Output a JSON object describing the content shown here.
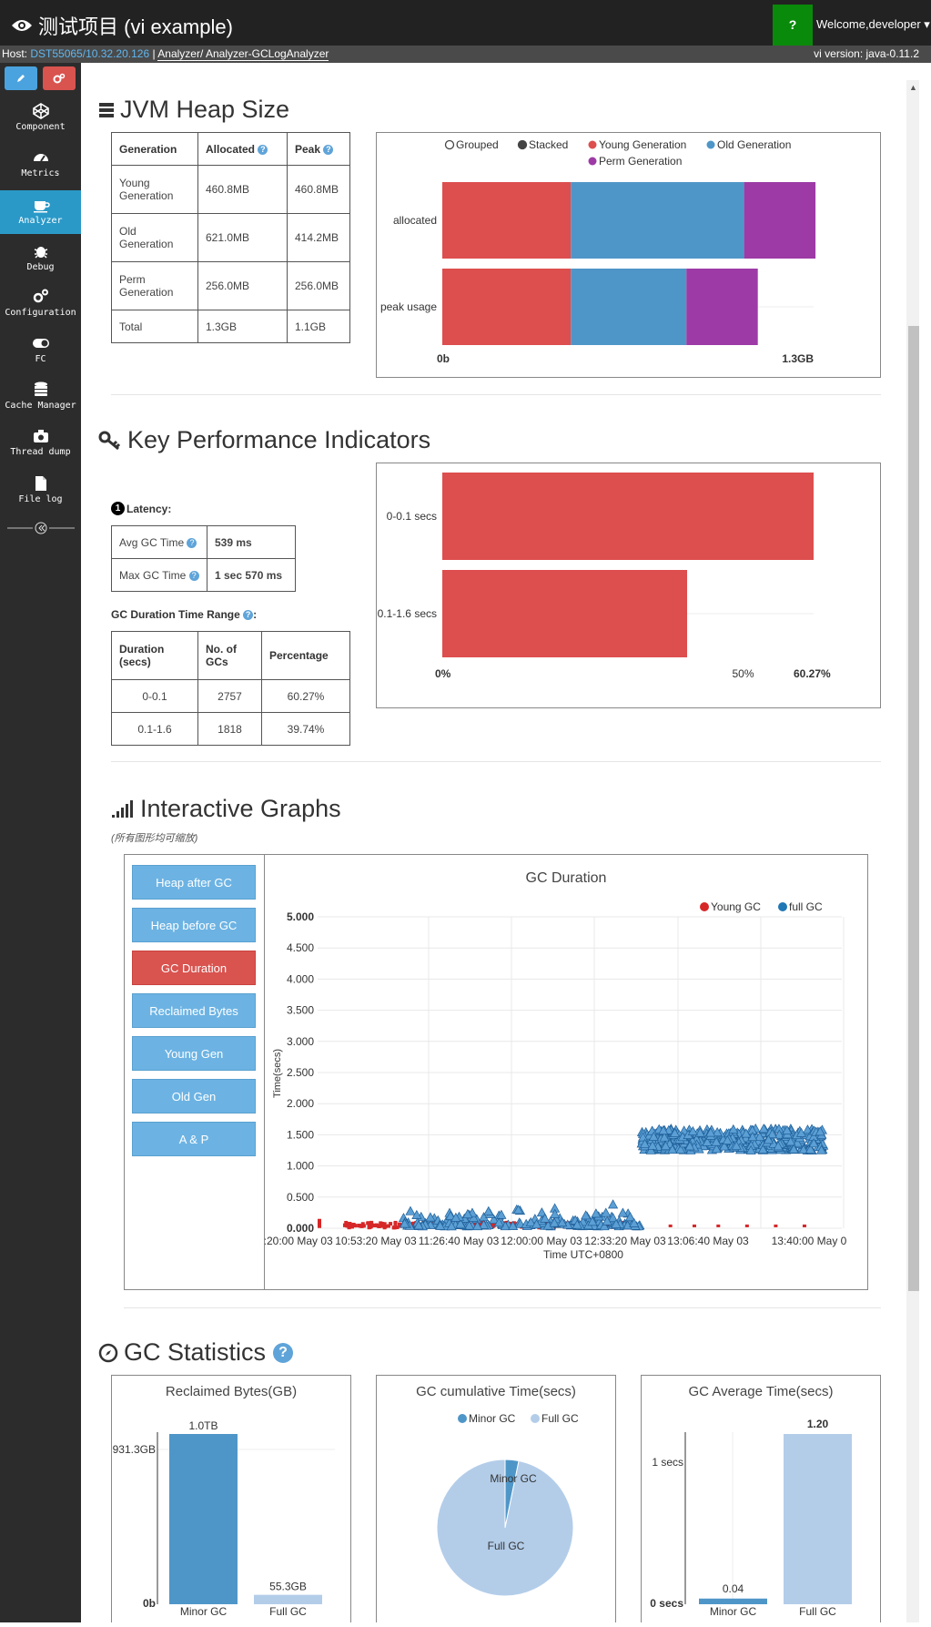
{
  "header": {
    "title": "测试项目 (vi example)",
    "help": "?",
    "welcome": "Welcome,developer"
  },
  "hostbar": {
    "host_label": "Host:",
    "host": "DST55065/10.32.20.126",
    "sep": "|",
    "path": "Analyzer/ Analyzer-GCLogAnalyzer",
    "version": "vi version: java-0.11.2"
  },
  "colors": {
    "young": "#dd4e4e",
    "old": "#4f96c8",
    "perm": "#9d3aa6",
    "minor": "#4f96c8",
    "full": "#b3cde9",
    "active_nav": "#2a99c8"
  },
  "sidebar": {
    "items": [
      {
        "label": "Component",
        "icon": "codepen-icon"
      },
      {
        "label": "Metrics",
        "icon": "dashboard-icon"
      },
      {
        "label": "Analyzer",
        "icon": "coffee-icon",
        "active": true
      },
      {
        "label": "Debug",
        "icon": "bug-icon"
      },
      {
        "label": "Configuration",
        "icon": "cogs-icon"
      },
      {
        "label": "FC",
        "icon": "toggle-icon"
      },
      {
        "label": "Cache Manager",
        "icon": "database-icon"
      },
      {
        "label": "Thread dump",
        "icon": "camera-icon"
      },
      {
        "label": "File log",
        "icon": "file-icon"
      }
    ]
  },
  "heap": {
    "title": "JVM Heap Size",
    "headers": [
      "Generation",
      "Allocated",
      "Peak"
    ],
    "rows": [
      [
        "Young Generation",
        "460.8MB",
        "460.8MB"
      ],
      [
        "Old Generation",
        "621.0MB",
        "414.2MB"
      ],
      [
        "Perm Generation",
        "256.0MB",
        "256.0MB"
      ],
      [
        "Total",
        "1.3GB",
        "1.1GB"
      ]
    ]
  },
  "kpi": {
    "title": "Key Performance Indicators",
    "latency_num": "1",
    "latency_label": "Latency:",
    "latency_rows": [
      [
        "Avg GC Time",
        "539 ms"
      ],
      [
        "Max GC Time",
        "1 sec 570 ms"
      ]
    ],
    "range_title": "GC Duration Time Range",
    "range_colon": ":",
    "range_headers": [
      "Duration (secs)",
      "No. of GCs",
      "Percentage"
    ],
    "range_rows": [
      [
        "0-0.1",
        "2757",
        "60.27%"
      ],
      [
        "0.1-1.6",
        "1818",
        "39.74%"
      ]
    ]
  },
  "graphs": {
    "title": "Interactive Graphs",
    "note": "(所有图形均可缩放)",
    "buttons": [
      "Heap after GC",
      "Heap before GC",
      "GC Duration",
      "Reclaimed Bytes",
      "Young Gen",
      "Old Gen",
      "A & P"
    ],
    "active_button": 2
  },
  "stats": {
    "title": "GC Statistics"
  },
  "chart_data": [
    {
      "type": "bar",
      "orientation": "horizontal",
      "stacked": true,
      "controls": [
        "Grouped",
        "Stacked"
      ],
      "categories": [
        "allocated",
        "peak usage"
      ],
      "series": [
        {
          "name": "Young Generation",
          "values": [
            460.8,
            460.8
          ]
        },
        {
          "name": "Old Generation",
          "values": [
            621.0,
            414.2
          ]
        },
        {
          "name": "Perm Generation",
          "values": [
            256.0,
            256.0
          ]
        }
      ],
      "unit": "MB",
      "xlim": [
        0,
        1331
      ],
      "xtick_labels": [
        "0b",
        "1.3GB"
      ],
      "legend": "top"
    },
    {
      "type": "bar",
      "orientation": "horizontal",
      "categories": [
        "0-0.1 secs",
        "0.1-1.6 secs"
      ],
      "values": [
        60.27,
        39.74
      ],
      "xlim": [
        0,
        60.27
      ],
      "xtick_labels": [
        "0%",
        "50%",
        "60.27%"
      ]
    },
    {
      "type": "scatter",
      "title": "GC Duration",
      "xlabel": "Time UTC+0800",
      "ylabel": "Time(secs)",
      "ylim": [
        0,
        5
      ],
      "yticks": [
        "0.000",
        "0.500",
        "1.000",
        "1.500",
        "2.000",
        "2.500",
        "3.000",
        "3.500",
        "4.000",
        "4.500",
        "5.000"
      ],
      "xticks": [
        "10:20:00 May 03",
        "10:53:20 May 03",
        "11:26:40 May 03",
        "12:00:00 May 03",
        "12:33:20 May 03",
        "13:06:40 May 03",
        "13:40:00 May 0"
      ],
      "series": [
        {
          "name": "Young GC",
          "marker": "square",
          "description": "dense below 0.1s from 10:20 to 12:50; sparse afterward"
        },
        {
          "name": "full GC",
          "marker": "triangle",
          "description": "0.05-0.45s from 10:53 to 12:50, then 1.2-1.7s from 12:50 to 13:52"
        }
      ],
      "legend": "top-right"
    },
    {
      "type": "bar",
      "title": "Reclaimed Bytes(GB)",
      "categories": [
        "Minor GC",
        "Full GC"
      ],
      "values": [
        1000,
        55.3
      ],
      "data_labels": [
        "1.0TB",
        "55.3GB"
      ],
      "ytick_labels": [
        "0b",
        "931.3GB"
      ]
    },
    {
      "type": "pie",
      "title": "GC cumulative Time(secs)",
      "labels": [
        "Minor GC",
        "Full GC"
      ],
      "values": [
        0.04,
        1.2
      ],
      "legend": "top"
    },
    {
      "type": "bar",
      "title": "GC Average Time(secs)",
      "categories": [
        "Minor GC",
        "Full GC"
      ],
      "values": [
        0.04,
        1.2
      ],
      "data_labels": [
        "0.04",
        "1.20"
      ],
      "ytick_labels": [
        "0 secs",
        "1 secs"
      ]
    }
  ]
}
